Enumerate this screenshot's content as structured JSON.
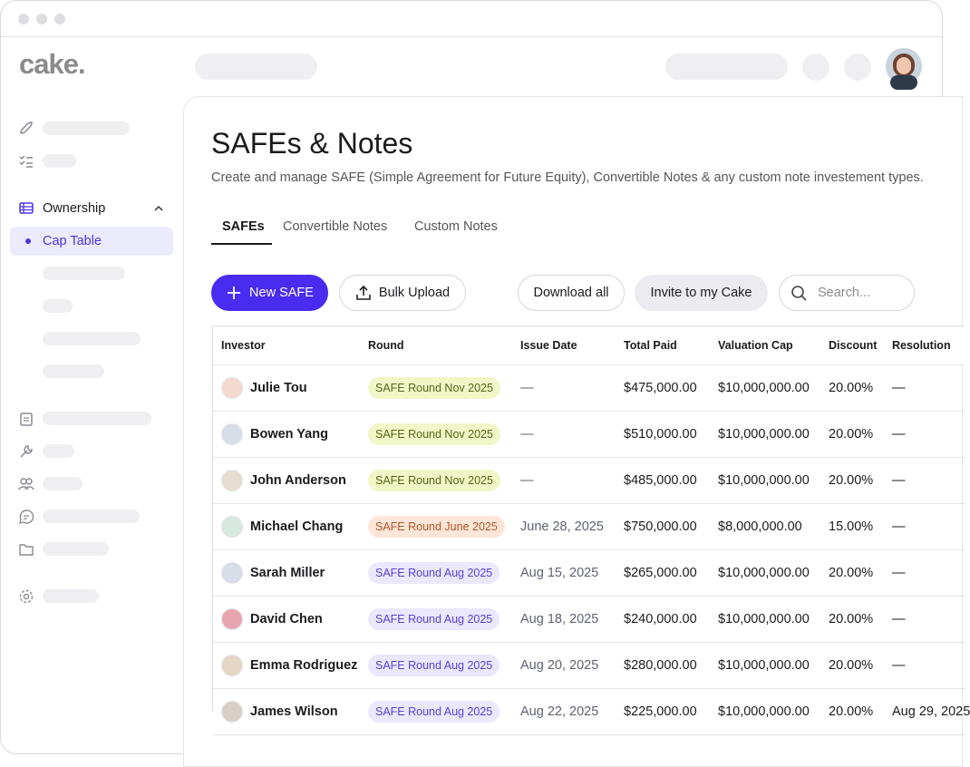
{
  "app": {
    "logo": "cake."
  },
  "sidebar": {
    "section": "Ownership",
    "active_item": "Cap Table"
  },
  "page": {
    "title": "SAFEs & Notes",
    "subtitle": "Create and manage SAFE (Simple Agreement for Future Equity), Convertible Notes & any custom note investement types."
  },
  "tabs": [
    "SAFEs",
    "Convertible Notes",
    "Custom Notes"
  ],
  "actions": {
    "new": "New SAFE",
    "upload": "Bulk Upload",
    "download": "Download all",
    "invite": "Invite to my Cake",
    "search": "Search..."
  },
  "table": {
    "columns": [
      "Investor",
      "Round",
      "Issue Date",
      "Total Paid",
      "Valuation Cap",
      "Discount",
      "Resolution"
    ],
    "rows": [
      [
        "Julie Tou",
        "SAFE Round Nov 2025",
        "—",
        "$475,000.00",
        "$10,000,000.00",
        "20.00%",
        "—"
      ],
      [
        "Bowen Yang",
        "SAFE Round Nov 2025",
        "—",
        "$510,000.00",
        "$10,000,000.00",
        "20.00%",
        "—"
      ],
      [
        "John Anderson",
        "SAFE Round Nov 2025",
        "—",
        "$485,000.00",
        "$10,000,000.00",
        "20.00%",
        "—"
      ],
      [
        "Michael Chang",
        "SAFE Round June 2025",
        "June 28, 2025",
        "$750,000.00",
        "$8,000,000.00",
        "15.00%",
        "—"
      ],
      [
        "Sarah Miller",
        "SAFE Round Aug 2025",
        "Aug 15, 2025",
        "$265,000.00",
        "$10,000,000.00",
        "20.00%",
        "—"
      ],
      [
        "David Chen",
        "SAFE Round Aug 2025",
        "Aug 18, 2025",
        "$240,000.00",
        "$10,000,000.00",
        "20.00%",
        "—"
      ],
      [
        "Emma Rodriguez",
        "SAFE Round Aug 2025",
        "Aug 20, 2025",
        "$280,000.00",
        "$10,000,000.00",
        "20.00%",
        "—"
      ],
      [
        "James Wilson",
        "SAFE Round Aug 2025",
        "Aug 22, 2025",
        "$225,000.00",
        "$10,000,000.00",
        "20.00%",
        "Aug 29, 2025"
      ]
    ],
    "pill_colors": [
      [
        "#f0f6c6",
        "#56661a"
      ],
      [
        "#f0f6c6",
        "#56661a"
      ],
      [
        "#f0f6c6",
        "#56661a"
      ],
      [
        "#fde6d8",
        "#b0542a"
      ],
      [
        "#ebe7fd",
        "#5a3fd6"
      ],
      [
        "#ebe7fd",
        "#5a3fd6"
      ],
      [
        "#ebe7fd",
        "#5a3fd6"
      ],
      [
        "#ebe7fd",
        "#5a3fd6"
      ]
    ]
  }
}
